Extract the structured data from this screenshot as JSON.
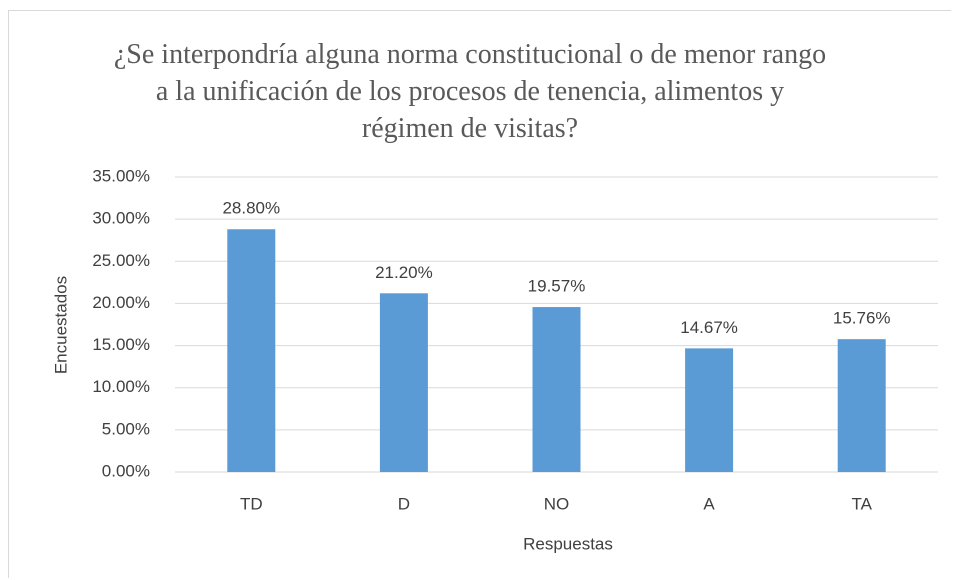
{
  "chart_data": {
    "type": "bar",
    "title": "¿Se interpondría alguna norma constitucional o de menor rango a la unificación de los procesos de tenencia, alimentos y régimen de visitas?",
    "x_label": "Respuestas",
    "y_label": "Encuestados",
    "categories": [
      "TD",
      "D",
      "NO",
      "A",
      "TA"
    ],
    "values": [
      28.8,
      21.2,
      19.57,
      14.67,
      15.76
    ],
    "value_labels": [
      "28.80%",
      "21.20%",
      "19.57%",
      "14.67%",
      "15.76%"
    ],
    "color": "#5b9bd5",
    "ylim": [
      0,
      35
    ],
    "yticks": [
      {
        "value": 0,
        "label": "0.00%"
      },
      {
        "value": 5,
        "label": "5.00%"
      },
      {
        "value": 10,
        "label": "10.00%"
      },
      {
        "value": 15,
        "label": "15.00%"
      },
      {
        "value": 20,
        "label": "20.00%"
      },
      {
        "value": 25,
        "label": "25.00%"
      },
      {
        "value": 30,
        "label": "30.00%"
      },
      {
        "value": 35,
        "label": "35.00%"
      }
    ],
    "grid": true
  }
}
